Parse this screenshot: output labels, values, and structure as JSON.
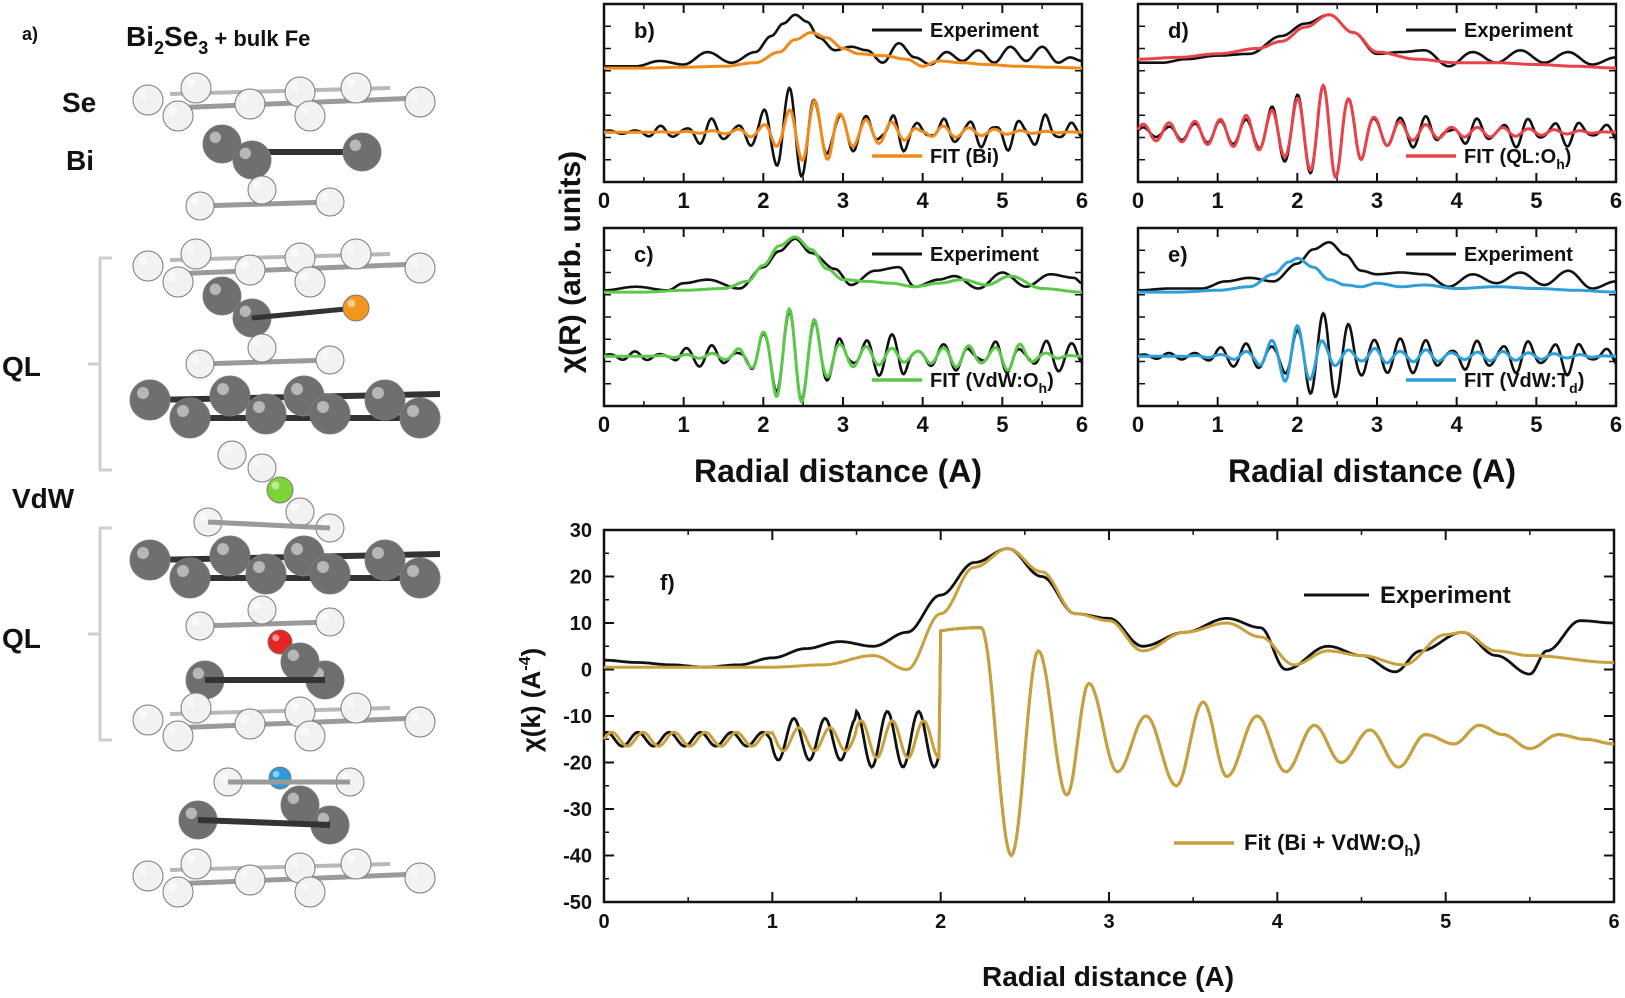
{
  "panel_a": {
    "label": "a)",
    "title_main": "Bi",
    "title_sub1": "2",
    "title_mid": "Se",
    "title_sub2": "3",
    "title_tail": " + bulk Fe",
    "labels": [
      "Se",
      "Bi",
      "QL",
      "VdW",
      "QL"
    ],
    "colors": {
      "se": "#f2f2f2",
      "bi": "#6f6f6f",
      "fe_bi": "#f0961e",
      "fe_vdw": "#7ed33a",
      "fe_ql": "#e62424",
      "fe_td": "#2a9bdc"
    }
  },
  "shared": {
    "ylabel_left": "χ(R)  (arb. units)",
    "xlabel": "Radial distance (A)",
    "experiment_label": "Experiment"
  },
  "chart_data": [
    {
      "type": "line",
      "label": "b)",
      "xlim": [
        0,
        6
      ],
      "xticks": [
        0,
        1,
        2,
        3,
        4,
        5,
        6
      ],
      "fit_label": "FIT (Bi)",
      "fit_sub": "",
      "fit_tail": "",
      "fit_color": "#f08a1c",
      "series": [
        {
          "name": "Experiment |χ(R)|",
          "x": [
            0,
            0.4,
            0.7,
            1.0,
            1.3,
            1.6,
            1.9,
            2.1,
            2.25,
            2.4,
            2.55,
            2.7,
            2.9,
            3.1,
            3.3,
            3.5,
            3.7,
            3.9,
            4.1,
            4.3,
            4.5,
            4.7,
            4.9,
            5.1,
            5.3,
            5.5,
            5.7,
            5.85,
            6.0
          ],
          "y": [
            0.1,
            0.1,
            0.4,
            0.2,
            0.9,
            0.3,
            0.9,
            1.8,
            2.5,
            3.0,
            2.6,
            1.7,
            1.0,
            1.2,
            1.0,
            0.3,
            1.4,
            0.6,
            0.2,
            0.9,
            0.4,
            1.0,
            0.3,
            1.2,
            0.4,
            1.2,
            0.3,
            0.6,
            0.4
          ]
        },
        {
          "name": "FIT |χ(R)|",
          "x": [
            0,
            0.5,
            1.0,
            1.5,
            1.9,
            2.2,
            2.4,
            2.6,
            2.8,
            3.0,
            3.2,
            3.5,
            3.8,
            4.0,
            4.2,
            4.5,
            4.8,
            5.2,
            5.6,
            6.0
          ],
          "y": [
            0.0,
            0.0,
            0.05,
            0.1,
            0.3,
            0.9,
            1.6,
            2.0,
            1.7,
            1.1,
            0.8,
            0.7,
            0.5,
            0.1,
            0.4,
            0.3,
            0.2,
            0.1,
            0.05,
            0.0
          ]
        }
      ]
    },
    {
      "type": "line",
      "label": "d)",
      "xlim": [
        0,
        6
      ],
      "xticks": [
        0,
        1,
        2,
        3,
        4,
        5,
        6
      ],
      "fit_label": "FIT (QL:O",
      "fit_sub": "h",
      "fit_tail": ")",
      "fit_color": "#e8434b",
      "series": [
        {
          "name": "Experiment |χ(R)|",
          "x": [
            0,
            0.3,
            0.6,
            1.0,
            1.4,
            1.8,
            2.1,
            2.4,
            2.7,
            3.0,
            3.3,
            3.6,
            3.9,
            4.2,
            4.5,
            4.8,
            5.1,
            5.4,
            5.7,
            6.0
          ],
          "y": [
            0.3,
            0.3,
            0.5,
            0.7,
            0.8,
            1.8,
            2.5,
            3.0,
            2.0,
            0.8,
            0.9,
            1.0,
            0.1,
            0.9,
            0.3,
            1.0,
            0.3,
            0.9,
            0.2,
            0.6
          ]
        },
        {
          "name": "FIT |χ(R)|",
          "x": [
            0,
            0.5,
            1.0,
            1.5,
            1.8,
            2.1,
            2.4,
            2.7,
            3.0,
            3.5,
            4.0,
            4.5,
            5.0,
            5.5,
            6.0
          ],
          "y": [
            0.5,
            0.6,
            0.8,
            1.1,
            1.5,
            2.3,
            3.0,
            2.0,
            0.9,
            0.5,
            0.3,
            0.3,
            0.2,
            0.1,
            0.0
          ]
        }
      ]
    },
    {
      "type": "line",
      "label": "c)",
      "xlim": [
        0,
        6
      ],
      "xticks": [
        0,
        1,
        2,
        3,
        4,
        5,
        6
      ],
      "fit_label": "FIT (VdW:O",
      "fit_sub": "h",
      "fit_tail": ")",
      "fit_color": "#5cc84a",
      "series": [
        {
          "name": "Experiment |χ(R)|",
          "x": [
            0,
            0.4,
            0.8,
            1.0,
            1.3,
            1.7,
            2.0,
            2.2,
            2.4,
            2.6,
            2.9,
            3.1,
            3.4,
            3.7,
            3.9,
            4.2,
            4.4,
            4.7,
            5.0,
            5.3,
            5.6,
            5.9,
            6.0
          ],
          "y": [
            0.1,
            0.3,
            0.1,
            0.5,
            0.7,
            0.2,
            1.4,
            2.3,
            3.0,
            2.2,
            1.3,
            0.4,
            1.2,
            1.4,
            0.3,
            0.7,
            0.9,
            0.2,
            1.1,
            0.3,
            1.0,
            0.8,
            0.5
          ]
        },
        {
          "name": "FIT |χ(R)|",
          "x": [
            0,
            0.5,
            1.0,
            1.5,
            1.8,
            2.0,
            2.2,
            2.4,
            2.6,
            2.8,
            3.0,
            3.3,
            3.6,
            3.9,
            4.2,
            4.5,
            4.8,
            5.1,
            5.5,
            6.0
          ],
          "y": [
            0.0,
            0.0,
            0.1,
            0.2,
            0.6,
            1.5,
            2.6,
            3.1,
            2.4,
            1.3,
            0.7,
            0.6,
            0.5,
            0.3,
            0.5,
            0.7,
            0.4,
            0.9,
            0.2,
            0.0
          ]
        }
      ]
    },
    {
      "type": "line",
      "label": "e)",
      "xlim": [
        0,
        6
      ],
      "xticks": [
        0,
        1,
        2,
        3,
        4,
        5,
        6
      ],
      "fit_label": "FIT (VdW:T",
      "fit_sub": "d",
      "fit_tail": ")",
      "fit_color": "#2f9fd8",
      "series": [
        {
          "name": "Experiment |χ(R)|",
          "x": [
            0,
            0.4,
            0.8,
            1.1,
            1.4,
            1.7,
            2.0,
            2.2,
            2.4,
            2.6,
            2.8,
            3.0,
            3.3,
            3.6,
            3.9,
            4.2,
            4.5,
            4.8,
            5.1,
            5.4,
            5.7,
            6.0
          ],
          "y": [
            0.1,
            0.2,
            0.2,
            0.6,
            0.8,
            0.6,
            1.6,
            2.4,
            2.8,
            2.1,
            1.2,
            1.0,
            1.1,
            1.0,
            0.3,
            1.0,
            0.5,
            1.1,
            0.4,
            1.2,
            0.2,
            0.6
          ]
        },
        {
          "name": "FIT |χ(R)|",
          "x": [
            0,
            0.5,
            1.0,
            1.4,
            1.7,
            1.9,
            2.0,
            2.2,
            2.4,
            2.6,
            2.8,
            3.0,
            3.3,
            3.6,
            4.0,
            4.5,
            5.0,
            5.5,
            6.0
          ],
          "y": [
            0.0,
            0.0,
            0.1,
            0.3,
            1.0,
            1.7,
            1.9,
            1.4,
            0.7,
            0.4,
            0.3,
            0.5,
            0.3,
            0.4,
            0.2,
            0.3,
            0.2,
            0.1,
            0.0
          ]
        }
      ]
    },
    {
      "type": "line",
      "label": "f)",
      "xlim": [
        0,
        6
      ],
      "ylim": [
        -50,
        30
      ],
      "xticks": [
        0,
        1,
        2,
        3,
        4,
        5,
        6
      ],
      "yticks": [
        30,
        20,
        10,
        0,
        -10,
        -20,
        -30,
        -40,
        -50
      ],
      "ylabel": "χ(k)  (A",
      "ylabel_sup": "-4",
      "ylabel_tail": ")",
      "experiment_label": "Experiment",
      "fit_label": "Fit (Bi + VdW:O",
      "fit_sub": "h",
      "fit_tail": ")",
      "fit_color": "#c8a03c",
      "series": [
        {
          "name": "Experiment |χ(R)|",
          "x": [
            0,
            0.2,
            0.4,
            0.6,
            0.8,
            1.0,
            1.2,
            1.4,
            1.6,
            1.8,
            2.0,
            2.2,
            2.4,
            2.6,
            2.8,
            3.0,
            3.2,
            3.45,
            3.7,
            3.9,
            4.05,
            4.3,
            4.5,
            4.7,
            4.85,
            5.1,
            5.3,
            5.5,
            5.6,
            5.8,
            6.0
          ],
          "y": [
            2,
            1.5,
            1,
            0.5,
            1,
            2.5,
            4.5,
            6,
            5,
            8,
            16,
            23,
            26,
            20,
            12,
            11,
            5,
            8,
            11,
            9,
            0,
            5,
            3,
            -0.5,
            4,
            8,
            3,
            -1,
            4,
            10.5,
            10
          ]
        },
        {
          "name": "Fit |χ(R)|",
          "x": [
            0,
            0.5,
            1.0,
            1.3,
            1.6,
            1.8,
            2.0,
            2.2,
            2.4,
            2.6,
            2.8,
            3.0,
            3.2,
            3.45,
            3.7,
            3.9,
            4.1,
            4.3,
            4.5,
            4.75,
            5.0,
            5.1,
            5.3,
            5.5,
            6.0
          ],
          "y": [
            0.5,
            0.5,
            0.5,
            1,
            3,
            0,
            12,
            22,
            26,
            21,
            12,
            10.5,
            4,
            8,
            10,
            7,
            1,
            4,
            3,
            1,
            7.5,
            8,
            4,
            3,
            1.5
          ]
        },
        {
          "name": "Experiment Re χ(R)",
          "x": [
            0,
            2.24,
            2.42,
            2.58,
            2.75,
            2.88,
            3.05,
            3.22,
            3.4,
            3.56,
            3.7,
            3.88,
            4.05,
            4.22,
            4.38,
            4.55,
            4.72,
            4.88,
            5.05,
            5.2,
            5.34,
            5.5,
            5.67,
            5.83,
            6.0
          ],
          "y": [
            -15,
            9,
            -40,
            4,
            -27,
            -3,
            -22,
            -10,
            -25,
            -7,
            -23,
            -10,
            -22,
            -12,
            -20,
            -13,
            -21,
            -14,
            -16,
            -12,
            -14,
            -17,
            -14,
            -15,
            -16
          ]
        },
        {
          "name": "Fit Re χ(R)",
          "x": [
            0,
            2.24,
            2.42,
            2.58,
            2.75,
            2.88,
            3.05,
            3.22,
            3.4,
            3.56,
            3.7,
            3.88,
            4.05,
            4.22,
            4.38,
            4.55,
            4.72,
            4.88,
            5.05,
            5.2,
            5.34,
            5.5,
            5.67,
            5.83,
            6.0
          ],
          "y": [
            -15,
            9,
            -40,
            4,
            -27,
            -3,
            -22,
            -10,
            -25,
            -7,
            -23,
            -10,
            -22,
            -12,
            -20,
            -13,
            -21,
            -14,
            -16,
            -12,
            -14,
            -17,
            -14,
            -15,
            -16
          ]
        }
      ]
    }
  ]
}
